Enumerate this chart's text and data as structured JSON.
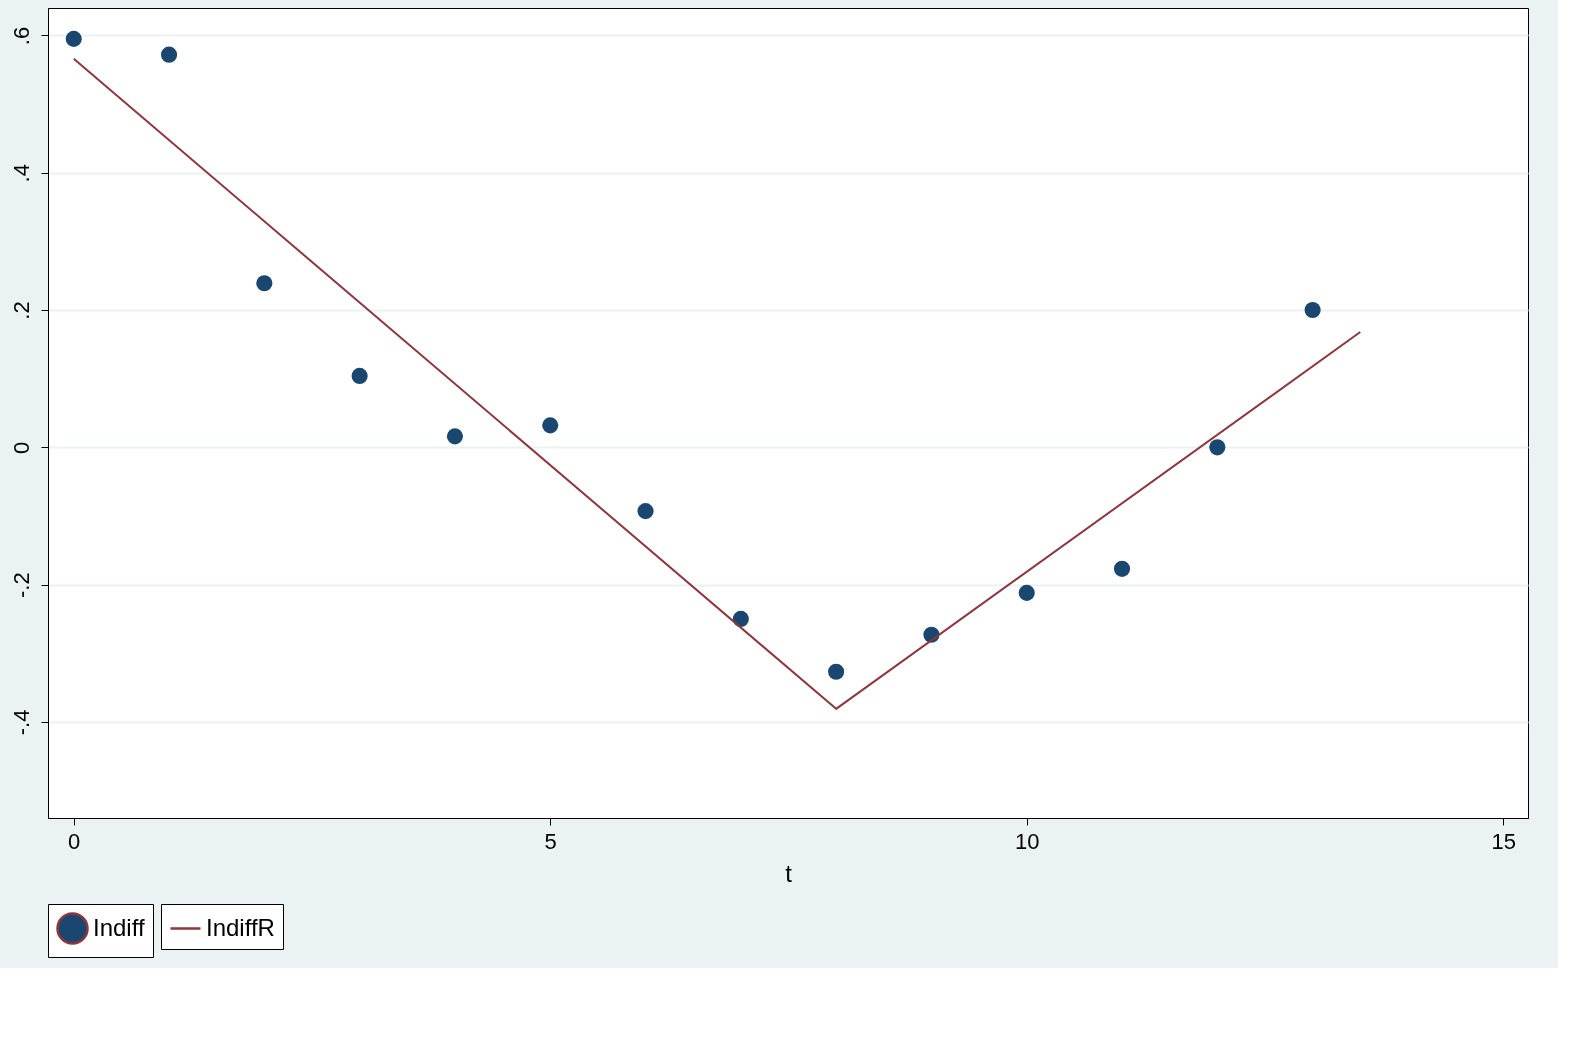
{
  "chart_data": {
    "type": "scatter",
    "xlabel": "t",
    "xlim": [
      -0.27,
      15.26
    ],
    "ylim": [
      -0.54,
      0.64
    ],
    "xticks": [
      0,
      5,
      10,
      15
    ],
    "yticks": [
      {
        "value": -0.4,
        "label": "-.4"
      },
      {
        "value": -0.2,
        "label": "-.2"
      },
      0,
      {
        "value": 0.2,
        "label": ".2"
      },
      {
        "value": 0.4,
        "label": ".4"
      },
      {
        "value": 0.6,
        "label": ".6"
      }
    ],
    "grid": "y",
    "legend": "bottom",
    "series": [
      {
        "name": "Indiff",
        "marker": "circle",
        "color": "#1a476f",
        "x": [
          0,
          1,
          2,
          3,
          4,
          5,
          6,
          7,
          8,
          9,
          10,
          11,
          12,
          13
        ],
        "values": [
          0.595,
          0.572,
          0.239,
          0.104,
          0.016,
          0.032,
          -0.093,
          -0.25,
          -0.327,
          -0.273,
          -0.212,
          -0.177,
          0.0,
          0.2
        ]
      },
      {
        "name": "IndiffR",
        "type": "line",
        "color": "#90353b",
        "x": [
          0,
          8,
          13.5
        ],
        "values": [
          0.566,
          -0.381,
          0.168
        ]
      }
    ]
  }
}
